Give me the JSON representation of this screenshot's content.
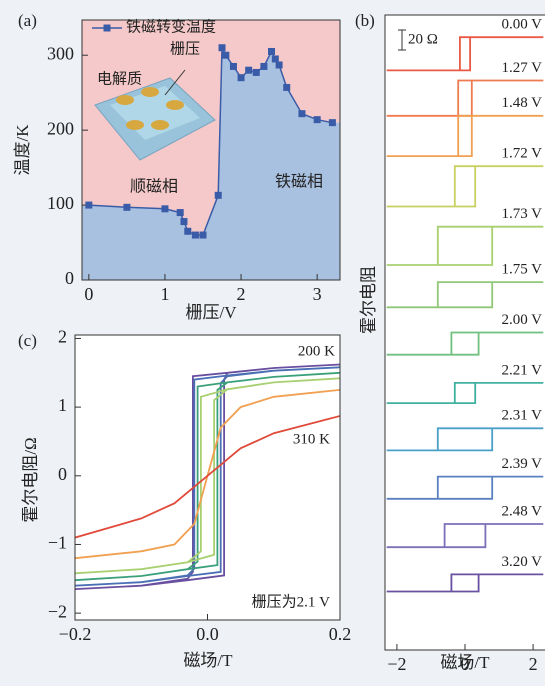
{
  "chart_data": [
    {
      "type": "line",
      "panel": "(a)",
      "x_label": "栅压/V",
      "y_label": "温度/K",
      "annotations": [
        "栅压",
        "电解质",
        "顺磁相",
        "铁磁相"
      ],
      "xlim": [
        -0.09,
        3.3
      ],
      "ylim": [
        0,
        347
      ],
      "xticks": [
        0,
        1,
        2,
        3
      ],
      "yticks": [
        0,
        100,
        200,
        300
      ],
      "series": [
        {
          "name": "铁磁转变温度",
          "color": "#3a5ca8",
          "x": [
            0,
            0.5,
            1,
            1.2,
            1.25,
            1.3,
            1.4,
            1.5,
            1.7,
            1.75,
            1.8,
            1.9,
            2.0,
            2.1,
            2.2,
            2.3,
            2.4,
            2.45,
            2.5,
            2.6,
            2.8,
            3.0,
            3.2
          ],
          "values": [
            100,
            97,
            95,
            90,
            78,
            65,
            60,
            60,
            113,
            310,
            300,
            285,
            270,
            280,
            277,
            285,
            305,
            295,
            287,
            257,
            222,
            214,
            210
          ]
        }
      ]
    },
    {
      "type": "line",
      "panel": "(b)",
      "x_label": "磁场/T",
      "y_label": "霍尔电阻",
      "scale_bar": "20 Ω",
      "xlim": [
        -2.35,
        2.35
      ],
      "ylim": [
        0,
        630
      ],
      "xticks": [
        {
          "value": -2,
          "label": "−2"
        },
        0,
        2
      ],
      "series": [
        {
          "name": "0.00 V",
          "color": "#e85a45",
          "x": [
            2.3,
            -0.15,
            -0.15,
            -2.3,
            0.15,
            0.15,
            2.3
          ],
          "values": [
            608,
            608,
            575,
            575,
            575,
            608,
            608
          ]
        },
        {
          "name": "1.27 V",
          "color": "#f07a50",
          "x": [
            2.3,
            -0.2,
            -0.2,
            -2.3,
            0.2,
            0.2,
            2.3
          ],
          "values": [
            565,
            565,
            530,
            530,
            530,
            565,
            565
          ]
        },
        {
          "name": "1.48 V",
          "color": "#f0a050",
          "x": [
            2.3,
            -0.2,
            -0.2,
            -2.3,
            0.2,
            0.2,
            2.3
          ],
          "values": [
            530,
            530,
            490,
            490,
            490,
            530,
            530
          ]
        },
        {
          "name": "1.72 V",
          "color": "#c8d060",
          "x": [
            2.3,
            -0.3,
            -0.3,
            -2.3,
            0.3,
            0.3,
            2.3
          ],
          "values": [
            480,
            480,
            440,
            440,
            440,
            480,
            480
          ]
        },
        {
          "name": "1.73 V",
          "color": "#a8d070",
          "x": [
            2.3,
            -0.8,
            -0.8,
            -2.3,
            0.8,
            0.8,
            2.3
          ],
          "values": [
            420,
            420,
            382,
            382,
            382,
            420,
            420
          ]
        },
        {
          "name": "1.75 V",
          "color": "#90c878",
          "x": [
            2.3,
            -0.8,
            -0.8,
            -2.3,
            0.8,
            0.8,
            2.3
          ],
          "values": [
            365,
            365,
            340,
            340,
            340,
            365,
            365
          ]
        },
        {
          "name": "2.00 V",
          "color": "#70c080",
          "x": [
            2.3,
            -0.4,
            -0.4,
            -2.3,
            0.4,
            0.4,
            2.3
          ],
          "values": [
            315,
            315,
            293,
            293,
            293,
            315,
            315
          ]
        },
        {
          "name": "2.21 V",
          "color": "#40b0a0",
          "x": [
            2.3,
            -0.3,
            -0.3,
            -2.3,
            0.3,
            0.3,
            2.3
          ],
          "values": [
            265,
            265,
            245,
            245,
            245,
            265,
            265
          ]
        },
        {
          "name": "2.31 V",
          "color": "#4aa0c8",
          "x": [
            2.3,
            -0.8,
            -0.8,
            -2.3,
            0.8,
            0.8,
            2.3
          ],
          "values": [
            220,
            220,
            198,
            198,
            198,
            220,
            220
          ]
        },
        {
          "name": "2.39 V",
          "color": "#5a80c0",
          "x": [
            2.3,
            -0.8,
            -0.8,
            -2.3,
            0.8,
            0.8,
            2.3
          ],
          "values": [
            172,
            172,
            150,
            150,
            150,
            172,
            172
          ]
        },
        {
          "name": "2.48 V",
          "color": "#7a70b8",
          "x": [
            2.3,
            -0.6,
            -0.6,
            -2.3,
            0.6,
            0.6,
            2.3
          ],
          "values": [
            125,
            125,
            102,
            102,
            102,
            125,
            125
          ]
        },
        {
          "name": "3.20 V",
          "color": "#6a50a0",
          "x": [
            2.3,
            -0.4,
            -0.4,
            -2.3,
            0.4,
            0.4,
            2.3
          ],
          "values": [
            75,
            75,
            58,
            58,
            58,
            75,
            75
          ]
        }
      ]
    },
    {
      "type": "line",
      "panel": "(c)",
      "x_label": "磁场/T",
      "y_label": "霍尔电阻/Ω",
      "annotations": [
        "栅压为2.1 V"
      ],
      "xlim": [
        -0.2,
        0.2
      ],
      "ylim": [
        -2.1,
        2.05
      ],
      "xticks": [
        {
          "value": -0.2,
          "label": "−0.2"
        },
        {
          "value": 0,
          "label": "0.0"
        },
        0.2
      ],
      "yticks": [
        {
          "value": -2,
          "label": "−2"
        },
        {
          "value": -1,
          "label": "−1"
        },
        0,
        1,
        2
      ],
      "series": [
        {
          "name": "200 K",
          "color": "#6a4fa0",
          "x": [
            0.2,
            0.1,
            0.03,
            -0.022,
            -0.022,
            -0.03,
            -0.1,
            -0.2,
            -0.1,
            -0.03,
            0.025,
            0.025,
            0.03,
            0.1,
            0.2
          ],
          "values": [
            1.62,
            1.57,
            1.5,
            1.45,
            -1.4,
            -1.5,
            -1.6,
            -1.65,
            -1.6,
            -1.52,
            -1.45,
            1.4,
            1.5,
            1.57,
            1.62
          ]
        },
        {
          "color": "#4a6fb5",
          "x": [
            0.2,
            0.1,
            0.03,
            -0.02,
            -0.02,
            -0.03,
            -0.1,
            -0.2,
            -0.1,
            -0.03,
            0.02,
            0.02,
            0.03,
            0.1,
            0.2
          ],
          "values": [
            1.58,
            1.53,
            1.46,
            1.4,
            -1.35,
            -1.45,
            -1.55,
            -1.6,
            -1.55,
            -1.46,
            -1.4,
            1.35,
            1.45,
            1.53,
            1.58
          ]
        },
        {
          "color": "#3aa07a",
          "x": [
            0.2,
            0.1,
            0.03,
            -0.015,
            -0.015,
            -0.03,
            -0.1,
            -0.2,
            -0.1,
            -0.03,
            0.015,
            0.015,
            0.03,
            0.1,
            0.2
          ],
          "values": [
            1.5,
            1.44,
            1.36,
            1.3,
            -1.25,
            -1.36,
            -1.46,
            -1.52,
            -1.46,
            -1.36,
            -1.3,
            1.25,
            1.36,
            1.44,
            1.5
          ]
        },
        {
          "color": "#a8d070",
          "x": [
            0.2,
            0.1,
            0.03,
            -0.01,
            -0.01,
            -0.03,
            -0.1,
            -0.2,
            -0.1,
            -0.03,
            0.01,
            0.01,
            0.03,
            0.1,
            0.2
          ],
          "values": [
            1.42,
            1.36,
            1.26,
            1.15,
            -1.1,
            -1.26,
            -1.36,
            -1.42,
            -1.36,
            -1.26,
            -1.15,
            1.1,
            1.26,
            1.36,
            1.42
          ]
        },
        {
          "color": "#f0a050",
          "x": [
            -0.2,
            -0.1,
            -0.05,
            -0.02,
            0,
            0.02,
            0.05,
            0.1,
            0.2
          ],
          "values": [
            -1.2,
            -1.1,
            -1.0,
            -0.7,
            0,
            0.7,
            1.0,
            1.15,
            1.25
          ]
        },
        {
          "name": "310 K",
          "color": "#e04a3a",
          "x": [
            -0.2,
            -0.1,
            -0.05,
            0,
            0.05,
            0.1,
            0.2
          ],
          "values": [
            -0.9,
            -0.62,
            -0.4,
            0,
            0.4,
            0.62,
            0.87
          ]
        }
      ]
    }
  ]
}
